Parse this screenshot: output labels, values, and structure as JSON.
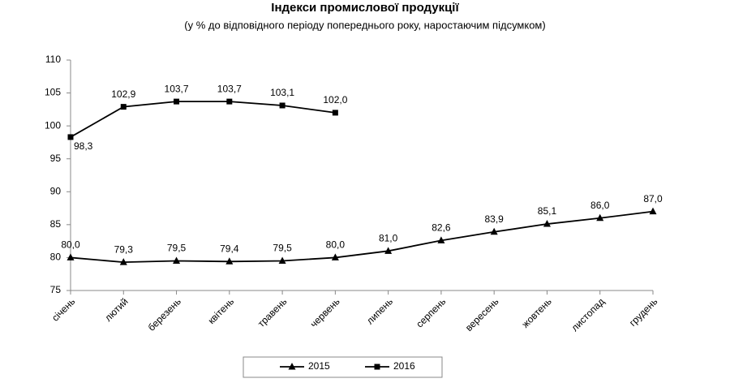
{
  "chart_data": {
    "type": "line",
    "title": "Індекси промислової продукції",
    "subtitle": "(у % до відповідного періоду попереднього року, наростаючим підсумком)",
    "categories": [
      "січень",
      "лютий",
      "березень",
      "квітень",
      "травень",
      "червень",
      "липень",
      "серпень",
      "вересень",
      "жовтень",
      "листопад",
      "грудень"
    ],
    "series": [
      {
        "name": "2015",
        "color": "#000000",
        "marker": "triangle",
        "values": [
          80.0,
          79.3,
          79.5,
          79.4,
          79.5,
          80.0,
          81.0,
          82.6,
          83.9,
          85.1,
          86.0,
          87.0
        ],
        "value_labels": [
          "80,0",
          "79,3",
          "79,5",
          "79,4",
          "79,5",
          "80,0",
          "81,0",
          "82,6",
          "83,9",
          "85,1",
          "86,0",
          "87,0"
        ]
      },
      {
        "name": "2016",
        "color": "#000000",
        "marker": "square",
        "values": [
          98.3,
          102.9,
          103.7,
          103.7,
          103.1,
          102.0,
          null,
          null,
          null,
          null,
          null,
          null
        ],
        "value_labels": [
          "98,3",
          "102,9",
          "103,7",
          "103,7",
          "103,1",
          "102,0",
          null,
          null,
          null,
          null,
          null,
          null
        ]
      }
    ],
    "ylim": [
      75,
      110
    ],
    "yticks": [
      75,
      80,
      85,
      90,
      95,
      100,
      105,
      110
    ],
    "grid": false
  }
}
